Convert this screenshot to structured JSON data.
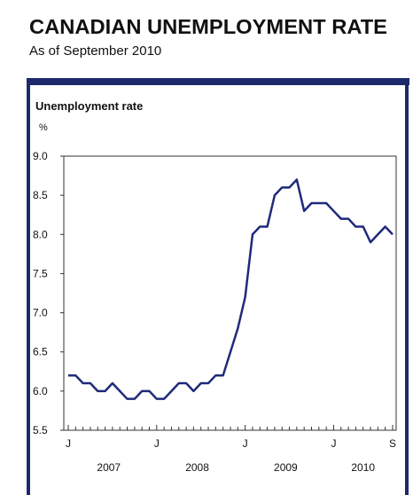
{
  "header": {
    "title": "CANADIAN UNEMPLOYMENT RATE",
    "subtitle": "As of September 2010"
  },
  "chart_data": {
    "type": "line",
    "y_axis_label": "Unemployment rate",
    "y_unit": "%",
    "categories": [
      "J",
      null,
      null,
      null,
      null,
      null,
      null,
      null,
      null,
      null,
      null,
      null,
      "J",
      null,
      null,
      null,
      null,
      null,
      null,
      null,
      null,
      null,
      null,
      null,
      "J",
      null,
      null,
      null,
      null,
      null,
      null,
      null,
      null,
      null,
      null,
      null,
      "J",
      null,
      null,
      null,
      null,
      null,
      null,
      null,
      "S"
    ],
    "years": [
      "2007",
      "2008",
      "2009",
      "2010"
    ],
    "series": [
      {
        "name": "Unemployment rate",
        "color": "#1f2a7a",
        "values": [
          6.2,
          6.2,
          6.1,
          6.1,
          6.0,
          6.0,
          6.1,
          6.0,
          5.9,
          5.9,
          6.0,
          6.0,
          5.9,
          5.9,
          6.0,
          6.1,
          6.1,
          6.0,
          6.1,
          6.1,
          6.2,
          6.2,
          6.5,
          6.8,
          7.2,
          8.0,
          8.1,
          8.1,
          8.5,
          8.6,
          8.6,
          8.7,
          8.3,
          8.4,
          8.4,
          8.4,
          8.3,
          8.2,
          8.2,
          8.1,
          8.1,
          7.9,
          8.0,
          8.1,
          8.0
        ]
      }
    ],
    "ylim": [
      5.5,
      9.0
    ],
    "yticks": [
      5.5,
      {
        "value": 6,
        "label": "6.0"
      },
      6.5,
      {
        "value": 7,
        "label": "7.0"
      },
      7.5,
      {
        "value": 8,
        "label": "8.0"
      },
      8.5,
      {
        "value": 9,
        "label": "9.0"
      }
    ],
    "grid": false
  }
}
